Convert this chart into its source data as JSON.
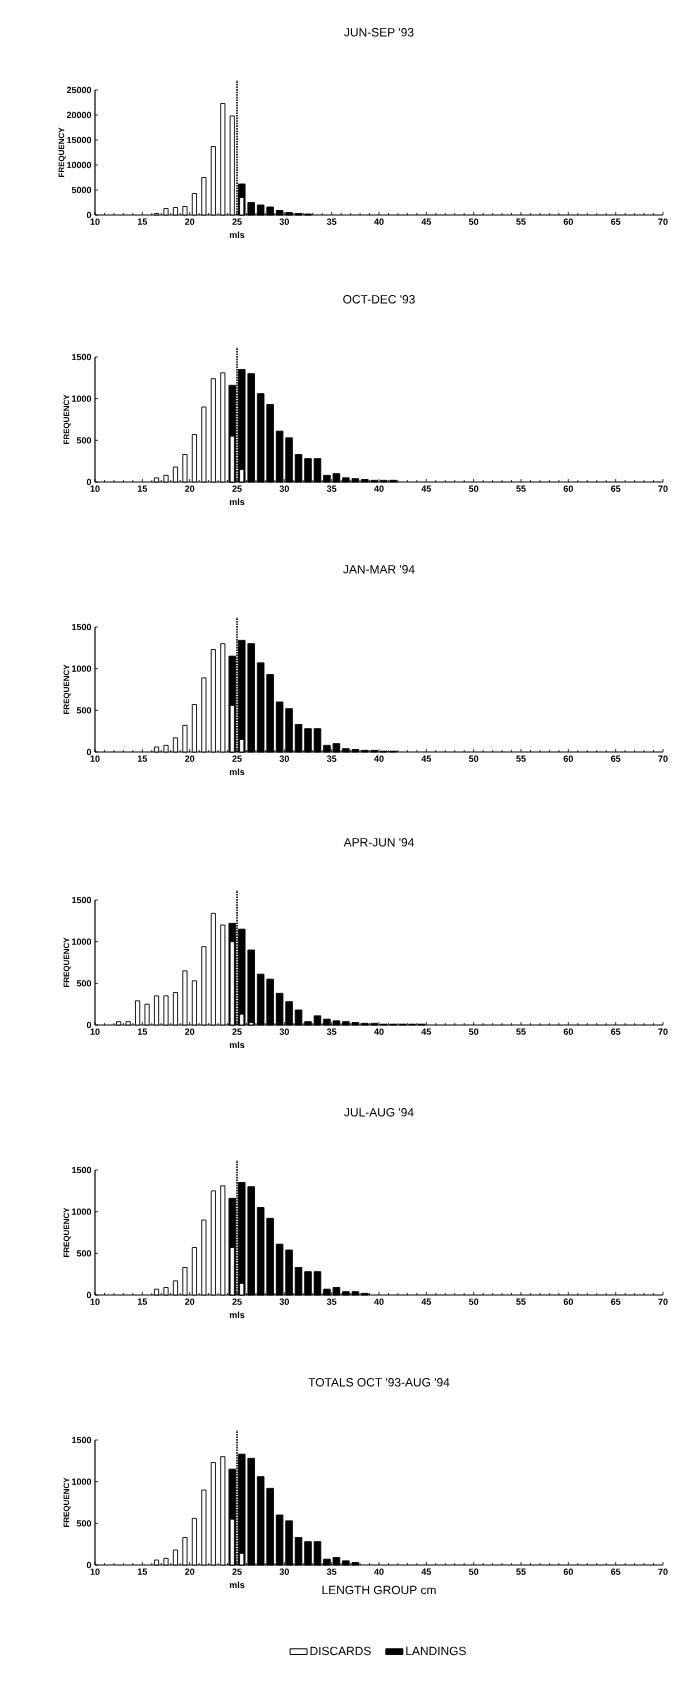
{
  "chart_data": [
    {
      "type": "bar",
      "title": "JUN-SEP  '93",
      "ylabel": "FREQUENCY",
      "xlim": [
        10,
        70
      ],
      "xticks": [
        10,
        15,
        20,
        25,
        30,
        35,
        40,
        45,
        50,
        55,
        60,
        65,
        70
      ],
      "ylim": [
        0,
        25000
      ],
      "yticks": [
        0,
        5000,
        10000,
        15000,
        20000,
        25000
      ],
      "ref_lines": [
        {
          "axis": "x",
          "value": 25,
          "label": "mls",
          "line_style": "dotted"
        }
      ],
      "series": [
        {
          "color": "#ffffff",
          "x": [
            16.5,
            17.5,
            18.5,
            19.5,
            20.5,
            21.5,
            22.5,
            23.5,
            24.5,
            25.5
          ],
          "values": [
            300,
            1300,
            1500,
            1700,
            4300,
            7500,
            13700,
            22300,
            19800,
            3500
          ]
        },
        {
          "color": "#000000",
          "x": [
            25.5,
            26.5,
            27.5,
            28.5,
            29.5,
            30.5,
            31.5,
            32.5
          ],
          "values": [
            6200,
            2500,
            2000,
            1600,
            900,
            500,
            300,
            200
          ]
        }
      ]
    },
    {
      "type": "bar",
      "title": "OCT-DEC '93",
      "ylabel": "FREQUENCY",
      "xlim": [
        10,
        70
      ],
      "xticks": [
        10,
        15,
        20,
        25,
        30,
        35,
        40,
        45,
        50,
        55,
        60,
        65,
        70
      ],
      "ylim": [
        0,
        1500
      ],
      "yticks": [
        0,
        500,
        1000,
        1500
      ],
      "ref_lines": [
        {
          "axis": "x",
          "value": 25,
          "label": "mls",
          "line_style": "dotted"
        }
      ],
      "series": [
        {
          "color": "#ffffff",
          "x": [
            16.5,
            17.5,
            18.5,
            19.5,
            20.5,
            21.5,
            22.5,
            23.5,
            24.5,
            25.5
          ],
          "values": [
            50,
            80,
            180,
            330,
            570,
            900,
            1240,
            1310,
            550,
            150
          ]
        },
        {
          "color": "#000000",
          "x": [
            24.5,
            25.5,
            26.5,
            27.5,
            28.5,
            29.5,
            30.5,
            31.5,
            32.5,
            33.5,
            34.5,
            35.5,
            36.5,
            37.5,
            38.5,
            39.5,
            40.5,
            41.5
          ],
          "values": [
            1160,
            1350,
            1300,
            1060,
            930,
            610,
            530,
            330,
            280,
            280,
            80,
            100,
            50,
            40,
            30,
            20,
            20,
            20
          ]
        }
      ]
    },
    {
      "type": "bar",
      "title": "JAN-MAR '94",
      "ylabel": "FREQUENCY",
      "xlim": [
        10,
        70
      ],
      "xticks": [
        10,
        15,
        20,
        25,
        30,
        35,
        40,
        45,
        50,
        55,
        60,
        65,
        70
      ],
      "ylim": [
        0,
        1500
      ],
      "yticks": [
        0,
        500,
        1000,
        1500
      ],
      "ref_lines": [
        {
          "axis": "x",
          "value": 25,
          "label": "mls",
          "line_style": "dotted"
        }
      ],
      "series": [
        {
          "color": "#ffffff",
          "x": [
            16.5,
            17.5,
            18.5,
            19.5,
            20.5,
            21.5,
            22.5,
            23.5,
            24.5,
            25.5
          ],
          "values": [
            60,
            80,
            170,
            320,
            570,
            890,
            1230,
            1300,
            560,
            150
          ]
        },
        {
          "color": "#000000",
          "x": [
            24.5,
            25.5,
            26.5,
            27.5,
            28.5,
            29.5,
            30.5,
            31.5,
            32.5,
            33.5,
            34.5,
            35.5,
            36.5,
            37.5,
            38.5,
            39.5,
            40.5,
            41.5
          ],
          "values": [
            1150,
            1340,
            1300,
            1070,
            930,
            600,
            520,
            330,
            280,
            280,
            80,
            100,
            40,
            30,
            20,
            20,
            10,
            10
          ]
        }
      ]
    },
    {
      "type": "bar",
      "title": "APR-JUN '94",
      "ylabel": "FREQUENCY",
      "xlim": [
        10,
        70
      ],
      "xticks": [
        10,
        15,
        20,
        25,
        30,
        35,
        40,
        45,
        50,
        55,
        60,
        65,
        70
      ],
      "ylim": [
        0,
        1500
      ],
      "yticks": [
        0,
        500,
        1000,
        1500
      ],
      "ref_lines": [
        {
          "axis": "x",
          "value": 25,
          "label": "mls",
          "line_style": "dotted"
        }
      ],
      "series": [
        {
          "color": "#ffffff",
          "x": [
            12.5,
            13.5,
            14.5,
            15.5,
            16.5,
            17.5,
            18.5,
            19.5,
            20.5,
            21.5,
            22.5,
            23.5,
            24.5,
            25.5,
            26.5
          ],
          "values": [
            40,
            40,
            290,
            250,
            350,
            350,
            390,
            650,
            530,
            940,
            1340,
            1200,
            1000,
            130,
            30
          ]
        },
        {
          "color": "#000000",
          "x": [
            24.5,
            25.5,
            26.5,
            27.5,
            28.5,
            29.5,
            30.5,
            31.5,
            32.5,
            33.5,
            34.5,
            35.5,
            36.5,
            37.5,
            38.5,
            39.5,
            40.5,
            41.5,
            42.5,
            43.5,
            44.5
          ],
          "values": [
            1220,
            1150,
            900,
            610,
            550,
            380,
            280,
            180,
            40,
            110,
            70,
            50,
            40,
            30,
            20,
            20,
            10,
            10,
            10,
            10,
            10
          ]
        }
      ]
    },
    {
      "type": "bar",
      "title": "JUL-AUG '94",
      "ylabel": "FREQUENCY",
      "xlim": [
        10,
        70
      ],
      "xticks": [
        10,
        15,
        20,
        25,
        30,
        35,
        40,
        45,
        50,
        55,
        60,
        65,
        70
      ],
      "ylim": [
        0,
        1500
      ],
      "yticks": [
        0,
        500,
        1000,
        1500
      ],
      "ref_lines": [
        {
          "axis": "x",
          "value": 25,
          "label": "mls",
          "line_style": "dotted"
        }
      ],
      "series": [
        {
          "color": "#ffffff",
          "x": [
            16.5,
            17.5,
            18.5,
            19.5,
            20.5,
            21.5,
            22.5,
            23.5,
            24.5,
            25.5
          ],
          "values": [
            70,
            90,
            170,
            330,
            570,
            900,
            1250,
            1310,
            570,
            140
          ]
        },
        {
          "color": "#000000",
          "x": [
            24.5,
            25.5,
            26.5,
            27.5,
            28.5,
            29.5,
            30.5,
            31.5,
            32.5,
            33.5,
            34.5,
            35.5,
            36.5,
            37.5,
            38.5
          ],
          "values": [
            1160,
            1350,
            1300,
            1050,
            920,
            610,
            540,
            330,
            280,
            280,
            70,
            90,
            40,
            40,
            20
          ]
        }
      ]
    },
    {
      "type": "bar",
      "title": "TOTALS OCT '93-AUG '94",
      "ylabel": "FREQUENCY",
      "xlabel": "LENGTH GROUP cm",
      "xlim": [
        10,
        70
      ],
      "xticks": [
        10,
        15,
        20,
        25,
        30,
        35,
        40,
        45,
        50,
        55,
        60,
        65,
        70
      ],
      "ylim": [
        0,
        1500
      ],
      "yticks": [
        0,
        500,
        1000,
        1500
      ],
      "ref_lines": [
        {
          "axis": "x",
          "value": 25,
          "label": "mls",
          "line_style": "dotted"
        }
      ],
      "legend": "bottom",
      "series": [
        {
          "name": "DISCARDS",
          "color": "#ffffff",
          "x": [
            16.5,
            17.5,
            18.5,
            19.5,
            20.5,
            21.5,
            22.5,
            23.5,
            24.5,
            25.5
          ],
          "values": [
            60,
            80,
            180,
            330,
            560,
            900,
            1230,
            1300,
            550,
            140
          ]
        },
        {
          "name": "LANDINGS",
          "color": "#000000",
          "x": [
            24.5,
            25.5,
            26.5,
            27.5,
            28.5,
            29.5,
            30.5,
            31.5,
            32.5,
            33.5,
            34.5,
            35.5,
            36.5,
            37.5
          ],
          "values": [
            1150,
            1330,
            1280,
            1060,
            920,
            600,
            530,
            330,
            280,
            280,
            70,
            90,
            50,
            30
          ]
        }
      ]
    }
  ]
}
